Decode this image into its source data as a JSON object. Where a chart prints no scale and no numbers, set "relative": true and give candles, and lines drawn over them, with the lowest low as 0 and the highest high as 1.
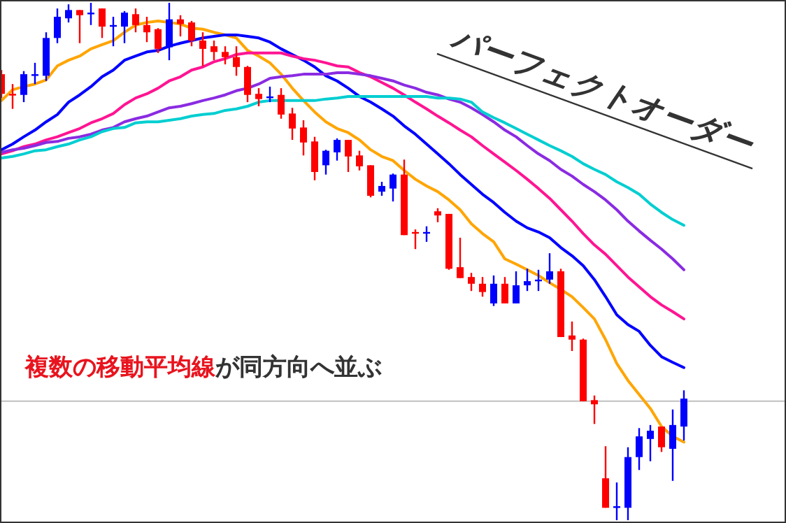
{
  "chart_data": {
    "type": "candlestick",
    "relative": true,
    "categories": [
      null,
      null,
      null,
      null,
      null,
      null,
      null,
      null,
      null,
      null,
      null,
      null,
      null,
      null,
      null,
      null,
      null,
      null,
      null,
      null,
      null,
      null,
      null,
      null,
      null,
      null,
      null,
      null,
      null,
      null,
      null,
      null,
      null,
      null,
      null,
      null,
      null,
      null,
      null,
      null,
      null,
      null,
      null,
      null,
      null,
      null,
      null,
      null,
      null,
      null,
      null,
      null,
      null,
      null,
      null,
      null,
      null,
      null,
      null,
      null,
      null,
      null
    ],
    "ohlc": [
      [
        0.862,
        0.87,
        0.816,
        0.824
      ],
      [
        0.824,
        0.843,
        0.795,
        0.822
      ],
      [
        0.822,
        0.868,
        0.808,
        0.862
      ],
      [
        0.859,
        0.884,
        0.843,
        0.862
      ],
      [
        0.859,
        0.943,
        0.849,
        0.932
      ],
      [
        0.932,
        0.989,
        0.922,
        0.973
      ],
      [
        0.97,
        0.997,
        0.962,
        0.986
      ],
      [
        0.986,
        0.986,
        0.922,
        0.976
      ],
      [
        0.978,
        1.0,
        0.957,
        0.981
      ],
      [
        0.989,
        0.989,
        0.932,
        0.954
      ],
      [
        0.954,
        0.973,
        0.916,
        0.957
      ],
      [
        0.954,
        0.984,
        0.922,
        0.981
      ],
      [
        0.978,
        0.989,
        0.943,
        0.957
      ],
      [
        0.957,
        0.973,
        0.924,
        0.943
      ],
      [
        0.949,
        0.951,
        0.903,
        0.911
      ],
      [
        0.914,
        1.0,
        0.889,
        0.968
      ],
      [
        0.968,
        0.976,
        0.935,
        0.959
      ],
      [
        0.962,
        0.965,
        0.916,
        0.927
      ],
      [
        0.927,
        0.943,
        0.878,
        0.911
      ],
      [
        0.916,
        0.927,
        0.889,
        0.905
      ],
      [
        0.905,
        0.916,
        0.881,
        0.895
      ],
      [
        0.895,
        0.916,
        0.859,
        0.876
      ],
      [
        0.876,
        0.878,
        0.808,
        0.822
      ],
      [
        0.824,
        0.835,
        0.8,
        0.814
      ],
      [
        0.816,
        0.838,
        0.808,
        0.819
      ],
      [
        0.822,
        0.835,
        0.776,
        0.784
      ],
      [
        0.786,
        0.797,
        0.735,
        0.757
      ],
      [
        0.759,
        0.773,
        0.705,
        0.73
      ],
      [
        0.732,
        0.741,
        0.657,
        0.673
      ],
      [
        0.686,
        0.716,
        0.668,
        0.714
      ],
      [
        0.711,
        0.738,
        0.695,
        0.735
      ],
      [
        0.735,
        0.735,
        0.673,
        0.703
      ],
      [
        0.705,
        0.714,
        0.676,
        0.684
      ],
      [
        0.686,
        0.686,
        0.624,
        0.627
      ],
      [
        0.635,
        0.654,
        0.627,
        0.646
      ],
      [
        0.641,
        0.67,
        0.616,
        0.668
      ],
      [
        0.668,
        0.697,
        0.551,
        0.551
      ],
      [
        0.557,
        0.562,
        0.524,
        0.554
      ],
      [
        0.554,
        0.568,
        0.538,
        0.557
      ],
      [
        0.597,
        0.603,
        0.576,
        0.589
      ],
      [
        0.592,
        0.592,
        0.484,
        0.486
      ],
      [
        0.489,
        0.546,
        0.468,
        0.468
      ],
      [
        0.47,
        0.478,
        0.443,
        0.457
      ],
      [
        0.457,
        0.47,
        0.432,
        0.441
      ],
      [
        0.419,
        0.473,
        0.414,
        0.457
      ],
      [
        0.457,
        0.47,
        0.419,
        0.419
      ],
      [
        0.419,
        0.481,
        0.419,
        0.454
      ],
      [
        0.454,
        0.486,
        0.443,
        0.462
      ],
      [
        0.462,
        0.484,
        0.443,
        0.465
      ],
      [
        0.465,
        0.516,
        0.457,
        0.481
      ],
      [
        0.481,
        0.486,
        0.354,
        0.354
      ],
      [
        0.357,
        0.384,
        0.327,
        0.349
      ],
      [
        0.349,
        0.351,
        0.23,
        0.23
      ],
      [
        0.232,
        0.241,
        0.186,
        0.224
      ],
      [
        0.081,
        0.143,
        0.024,
        0.024
      ],
      [
        0.024,
        0.073,
        0.0,
        0.027
      ],
      [
        0.024,
        0.141,
        0.0,
        0.122
      ],
      [
        0.122,
        0.178,
        0.097,
        0.162
      ],
      [
        0.157,
        0.184,
        0.114,
        0.173
      ],
      [
        0.181,
        0.181,
        0.132,
        0.141
      ],
      [
        0.138,
        0.214,
        0.076,
        0.184
      ],
      [
        0.181,
        0.251,
        0.154,
        0.235
      ]
    ],
    "colors": [
      "#ff0000",
      "#ff0000",
      "#0000ff",
      "#0000ff",
      "#0000ff",
      "#0000ff",
      "#0000ff",
      "#ff0000",
      "#0000ff",
      "#ff0000",
      "#0000ff",
      "#0000ff",
      "#ff0000",
      "#ff0000",
      "#ff0000",
      "#0000ff",
      "#ff0000",
      "#ff0000",
      "#ff0000",
      "#ff0000",
      "#ff0000",
      "#ff0000",
      "#ff0000",
      "#ff0000",
      "#0000ff",
      "#ff0000",
      "#ff0000",
      "#ff0000",
      "#ff0000",
      "#0000ff",
      "#0000ff",
      "#ff0000",
      "#ff0000",
      "#ff0000",
      "#0000ff",
      "#0000ff",
      "#ff0000",
      "#ff0000",
      "#0000ff",
      "#ff0000",
      "#ff0000",
      "#ff0000",
      "#ff0000",
      "#ff0000",
      "#0000ff",
      "#ff0000",
      "#0000ff",
      "#0000ff",
      "#0000ff",
      "#0000ff",
      "#ff0000",
      "#ff0000",
      "#ff0000",
      "#ff0000",
      "#ff0000",
      "#0000ff",
      "#0000ff",
      "#0000ff",
      "#0000ff",
      "#ff0000",
      "#0000ff",
      "#0000ff"
    ],
    "series": [
      {
        "type": "line",
        "color": "#ffa500",
        "values": [
          0.811,
          0.832,
          0.838,
          0.843,
          0.851,
          0.878,
          0.889,
          0.897,
          0.911,
          0.919,
          0.927,
          0.943,
          0.957,
          0.962,
          0.965,
          0.962,
          0.959,
          0.951,
          0.949,
          0.943,
          0.938,
          0.932,
          0.908,
          0.897,
          0.884,
          0.862,
          0.835,
          0.811,
          0.789,
          0.77,
          0.757,
          0.749,
          0.735,
          0.716,
          0.703,
          0.695,
          0.676,
          0.659,
          0.646,
          0.635,
          0.619,
          0.6,
          0.573,
          0.554,
          0.538,
          0.505,
          0.495,
          0.484,
          0.473,
          0.459,
          0.446,
          0.432,
          0.411,
          0.389,
          0.349,
          0.303,
          0.27,
          0.243,
          0.216,
          0.181,
          0.162,
          0.151
        ]
      },
      {
        "type": "line",
        "color": "#0000ff",
        "values": [
          0.716,
          0.727,
          0.741,
          0.754,
          0.77,
          0.784,
          0.808,
          0.822,
          0.838,
          0.857,
          0.87,
          0.889,
          0.897,
          0.905,
          0.908,
          0.916,
          0.922,
          0.927,
          0.932,
          0.935,
          0.938,
          0.938,
          0.935,
          0.932,
          0.924,
          0.911,
          0.9,
          0.889,
          0.876,
          0.859,
          0.849,
          0.835,
          0.819,
          0.808,
          0.795,
          0.781,
          0.762,
          0.746,
          0.727,
          0.708,
          0.689,
          0.668,
          0.649,
          0.63,
          0.614,
          0.595,
          0.578,
          0.565,
          0.557,
          0.546,
          0.527,
          0.511,
          0.492,
          0.465,
          0.432,
          0.397,
          0.378,
          0.365,
          0.338,
          0.316,
          0.305,
          0.295
        ]
      },
      {
        "type": "line",
        "color": "#ff1493",
        "values": [
          0.708,
          0.714,
          0.722,
          0.727,
          0.735,
          0.741,
          0.749,
          0.757,
          0.768,
          0.776,
          0.786,
          0.803,
          0.816,
          0.824,
          0.835,
          0.849,
          0.857,
          0.87,
          0.876,
          0.886,
          0.892,
          0.9,
          0.903,
          0.903,
          0.903,
          0.903,
          0.897,
          0.892,
          0.889,
          0.884,
          0.878,
          0.876,
          0.865,
          0.857,
          0.846,
          0.835,
          0.822,
          0.808,
          0.795,
          0.781,
          0.768,
          0.754,
          0.741,
          0.724,
          0.708,
          0.692,
          0.676,
          0.659,
          0.641,
          0.622,
          0.6,
          0.578,
          0.554,
          0.532,
          0.514,
          0.492,
          0.47,
          0.451,
          0.432,
          0.416,
          0.403,
          0.389
        ]
      },
      {
        "type": "line",
        "color": "#8a2be2",
        "values": [
          0.711,
          0.716,
          0.719,
          0.724,
          0.73,
          0.732,
          0.738,
          0.741,
          0.746,
          0.754,
          0.759,
          0.77,
          0.776,
          0.781,
          0.789,
          0.797,
          0.8,
          0.805,
          0.811,
          0.816,
          0.822,
          0.83,
          0.835,
          0.843,
          0.854,
          0.857,
          0.859,
          0.862,
          0.862,
          0.862,
          0.865,
          0.865,
          0.862,
          0.859,
          0.854,
          0.849,
          0.841,
          0.835,
          0.827,
          0.822,
          0.814,
          0.808,
          0.797,
          0.784,
          0.77,
          0.754,
          0.741,
          0.724,
          0.708,
          0.695,
          0.678,
          0.665,
          0.649,
          0.635,
          0.619,
          0.6,
          0.578,
          0.559,
          0.541,
          0.524,
          0.505,
          0.484
        ]
      },
      {
        "type": "line",
        "color": "#00ced1",
        "values": [
          0.7,
          0.703,
          0.708,
          0.714,
          0.716,
          0.722,
          0.727,
          0.735,
          0.741,
          0.751,
          0.757,
          0.759,
          0.768,
          0.77,
          0.77,
          0.773,
          0.776,
          0.781,
          0.784,
          0.786,
          0.792,
          0.795,
          0.8,
          0.808,
          0.811,
          0.811,
          0.811,
          0.811,
          0.811,
          0.814,
          0.816,
          0.819,
          0.819,
          0.819,
          0.819,
          0.819,
          0.819,
          0.819,
          0.819,
          0.816,
          0.816,
          0.814,
          0.808,
          0.789,
          0.778,
          0.768,
          0.757,
          0.746,
          0.735,
          0.724,
          0.714,
          0.703,
          0.689,
          0.678,
          0.668,
          0.654,
          0.643,
          0.63,
          0.611,
          0.595,
          0.581,
          0.57
        ]
      }
    ],
    "ref_lines": [
      {
        "axis": "y",
        "value": 0.23,
        "color": "#c0c0c0"
      }
    ],
    "annotations": [
      "パーフェクトオーダー",
      "複数の移動平均線",
      "が同方向へ並ぶ"
    ]
  }
}
